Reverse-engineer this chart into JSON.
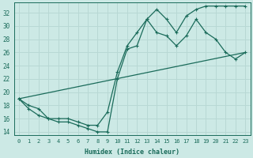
{
  "xlabel": "Humidex (Indice chaleur)",
  "xlim": [
    -0.5,
    23.5
  ],
  "ylim": [
    13.5,
    33.5
  ],
  "yticks": [
    14,
    16,
    18,
    20,
    22,
    24,
    26,
    28,
    30,
    32
  ],
  "xticks": [
    0,
    1,
    2,
    3,
    4,
    5,
    6,
    7,
    8,
    9,
    10,
    11,
    12,
    13,
    14,
    15,
    16,
    17,
    18,
    19,
    20,
    21,
    22,
    23
  ],
  "bg_color": "#cce9e5",
  "grid_color": "#b8d8d4",
  "line_color": "#1a6b5a",
  "line1_x": [
    0,
    1,
    2,
    3,
    4,
    5,
    6,
    7,
    8,
    9,
    10,
    11,
    12,
    13,
    14,
    15,
    16,
    17,
    18,
    19,
    20,
    21,
    22,
    23
  ],
  "line1_y": [
    19,
    17.5,
    16.5,
    16,
    15.5,
    15.5,
    15,
    14.5,
    14,
    14,
    22,
    26.5,
    27,
    31,
    32.5,
    31,
    29,
    31.5,
    32.5,
    33,
    33,
    33,
    33,
    33
  ],
  "line2_x": [
    0,
    1,
    2,
    3,
    4,
    5,
    6,
    7,
    8,
    9,
    10,
    11,
    12,
    13,
    14,
    15,
    16,
    17,
    18,
    19,
    20,
    21,
    22,
    23
  ],
  "line2_y": [
    19,
    18,
    17.5,
    16,
    16,
    16,
    15.5,
    15,
    15,
    17,
    23,
    27,
    29,
    31,
    29,
    28.5,
    27,
    28.5,
    31,
    29,
    28,
    26,
    25,
    26
  ],
  "line3_x": [
    0,
    23
  ],
  "line3_y": [
    19,
    26
  ]
}
